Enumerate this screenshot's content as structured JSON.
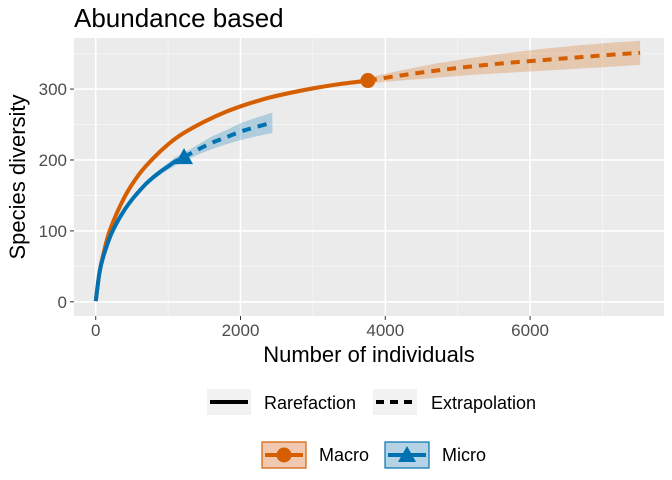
{
  "chart_data": {
    "type": "line",
    "title": "Abundance based",
    "xlabel": "Number of individuals",
    "ylabel": "Species diversity",
    "xlim": [
      -300,
      7850
    ],
    "ylim": [
      -20,
      372
    ],
    "xticks": [
      0,
      2000,
      4000,
      6000
    ],
    "yticks": [
      0,
      100,
      200,
      300
    ],
    "grid": true,
    "legend_position": "bottom",
    "linetype_legend": [
      "Rarefaction",
      "Extrapolation"
    ],
    "series": [
      {
        "name": "Macro",
        "color": "#D55E00",
        "marker": "circle",
        "observed": [
          3760,
          312
        ],
        "rarefaction": {
          "x": [
            1,
            50,
            100,
            200,
            400,
            600,
            800,
            1000,
            1200,
            1500,
            1800,
            2100,
            2400,
            2700,
            3000,
            3300,
            3600,
            3760
          ],
          "y": [
            1,
            40,
            65,
            102,
            148,
            180,
            203,
            222,
            237,
            254,
            268,
            279,
            288,
            295,
            301,
            306,
            310,
            312
          ],
          "lower": [
            1,
            39,
            63,
            99,
            145,
            177,
            200,
            219,
            234,
            251,
            265,
            276,
            285,
            292,
            298,
            303,
            307,
            308
          ],
          "upper": [
            1,
            41,
            67,
            105,
            151,
            183,
            206,
            225,
            240,
            257,
            271,
            282,
            291,
            298,
            304,
            309,
            313,
            316
          ]
        },
        "extrapolation": {
          "x": [
            3760,
            4200,
            4700,
            5200,
            5700,
            6200,
            6700,
            7200,
            7520
          ],
          "y": [
            312,
            319,
            326,
            332,
            337,
            341,
            345,
            349,
            351
          ],
          "lower": [
            308,
            312,
            316,
            320,
            323,
            326,
            329,
            332,
            334
          ],
          "upper": [
            316,
            326,
            336,
            344,
            351,
            357,
            362,
            366,
            368
          ]
        }
      },
      {
        "name": "Micro",
        "color": "#0072B2",
        "marker": "triangle",
        "observed": [
          1220,
          204
        ],
        "rarefaction": {
          "x": [
            1,
            50,
            100,
            200,
            300,
            400,
            500,
            600,
            700,
            800,
            900,
            1000,
            1100,
            1220
          ],
          "y": [
            1,
            40,
            62,
            92,
            113,
            130,
            144,
            156,
            167,
            176,
            184,
            191,
            198,
            204
          ],
          "lower": [
            1,
            38,
            59,
            88,
            109,
            126,
            140,
            152,
            163,
            172,
            180,
            186,
            192,
            198
          ],
          "upper": [
            1,
            42,
            65,
            96,
            117,
            134,
            148,
            160,
            171,
            180,
            188,
            196,
            204,
            210
          ]
        },
        "extrapolation": {
          "x": [
            1220,
            1400,
            1600,
            1800,
            2000,
            2200,
            2440
          ],
          "y": [
            204,
            214,
            224,
            232,
            240,
            246,
            253
          ],
          "lower": [
            198,
            207,
            215,
            222,
            228,
            233,
            238
          ],
          "upper": [
            210,
            221,
            233,
            242,
            252,
            259,
            267
          ]
        }
      }
    ]
  }
}
